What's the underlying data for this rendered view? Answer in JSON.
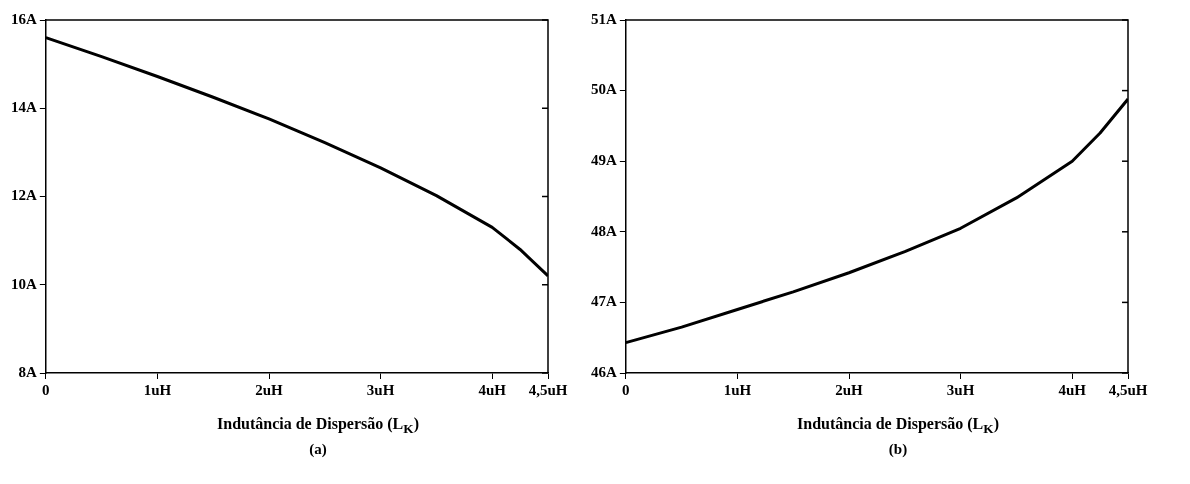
{
  "chart_data": [
    {
      "type": "line",
      "xlabel": "Indutância de Dispersão (L$_{K}$)",
      "annotations": [
        "(a)"
      ],
      "x": [
        0,
        0.5,
        1,
        1.5,
        2,
        2.5,
        3,
        3.5,
        4,
        4.25,
        4.5
      ],
      "series": [
        {
          "color": "#000000",
          "values": [
            15.6,
            15.17,
            14.72,
            14.25,
            13.76,
            13.22,
            12.65,
            12.02,
            11.3,
            10.8,
            10.2
          ]
        }
      ],
      "xlim": [
        0,
        4.5
      ],
      "xticks": [
        0,
        {
          "value": 1,
          "label": "1uH"
        },
        {
          "value": 2,
          "label": "2uH"
        },
        {
          "value": 3,
          "label": "3uH"
        },
        {
          "value": 4,
          "label": "4uH"
        },
        {
          "value": 4.5,
          "label": "4,5uH"
        }
      ],
      "ylim": [
        8,
        16
      ],
      "yticks": [
        {
          "value": 8,
          "label": "8A"
        },
        {
          "value": 10,
          "label": "10A"
        },
        {
          "value": 12,
          "label": "12A"
        },
        {
          "value": 14,
          "label": "14A"
        },
        {
          "value": 16,
          "label": "16A"
        }
      ],
      "grid": false,
      "legend": false,
      "marker": "none",
      "line_style": "solid"
    },
    {
      "type": "line",
      "xlabel": "Indutância de Dispersão (L$_{K}$)",
      "annotations": [
        "(b)"
      ],
      "x": [
        0,
        0.5,
        1,
        1.5,
        2,
        2.5,
        3,
        3.5,
        4,
        4.25,
        4.5
      ],
      "series": [
        {
          "color": "#000000",
          "values": [
            46.43,
            46.65,
            46.9,
            47.15,
            47.42,
            47.72,
            48.05,
            48.48,
            49.0,
            49.4,
            49.88
          ]
        }
      ],
      "xlim": [
        0,
        4.5
      ],
      "xticks": [
        0,
        {
          "value": 1,
          "label": "1uH"
        },
        {
          "value": 2,
          "label": "2uH"
        },
        {
          "value": 3,
          "label": "3uH"
        },
        {
          "value": 4,
          "label": "4uH"
        },
        {
          "value": 4.5,
          "label": "4,5uH"
        }
      ],
      "ylim": [
        46,
        51
      ],
      "yticks": [
        {
          "value": 46,
          "label": "46A"
        },
        {
          "value": 47,
          "label": "47A"
        },
        {
          "value": 48,
          "label": "48A"
        },
        {
          "value": 49,
          "label": "49A"
        },
        {
          "value": 50,
          "label": "50A"
        },
        {
          "value": 51,
          "label": "51A"
        }
      ],
      "grid": false,
      "legend": false,
      "marker": "none",
      "line_style": "solid"
    }
  ]
}
